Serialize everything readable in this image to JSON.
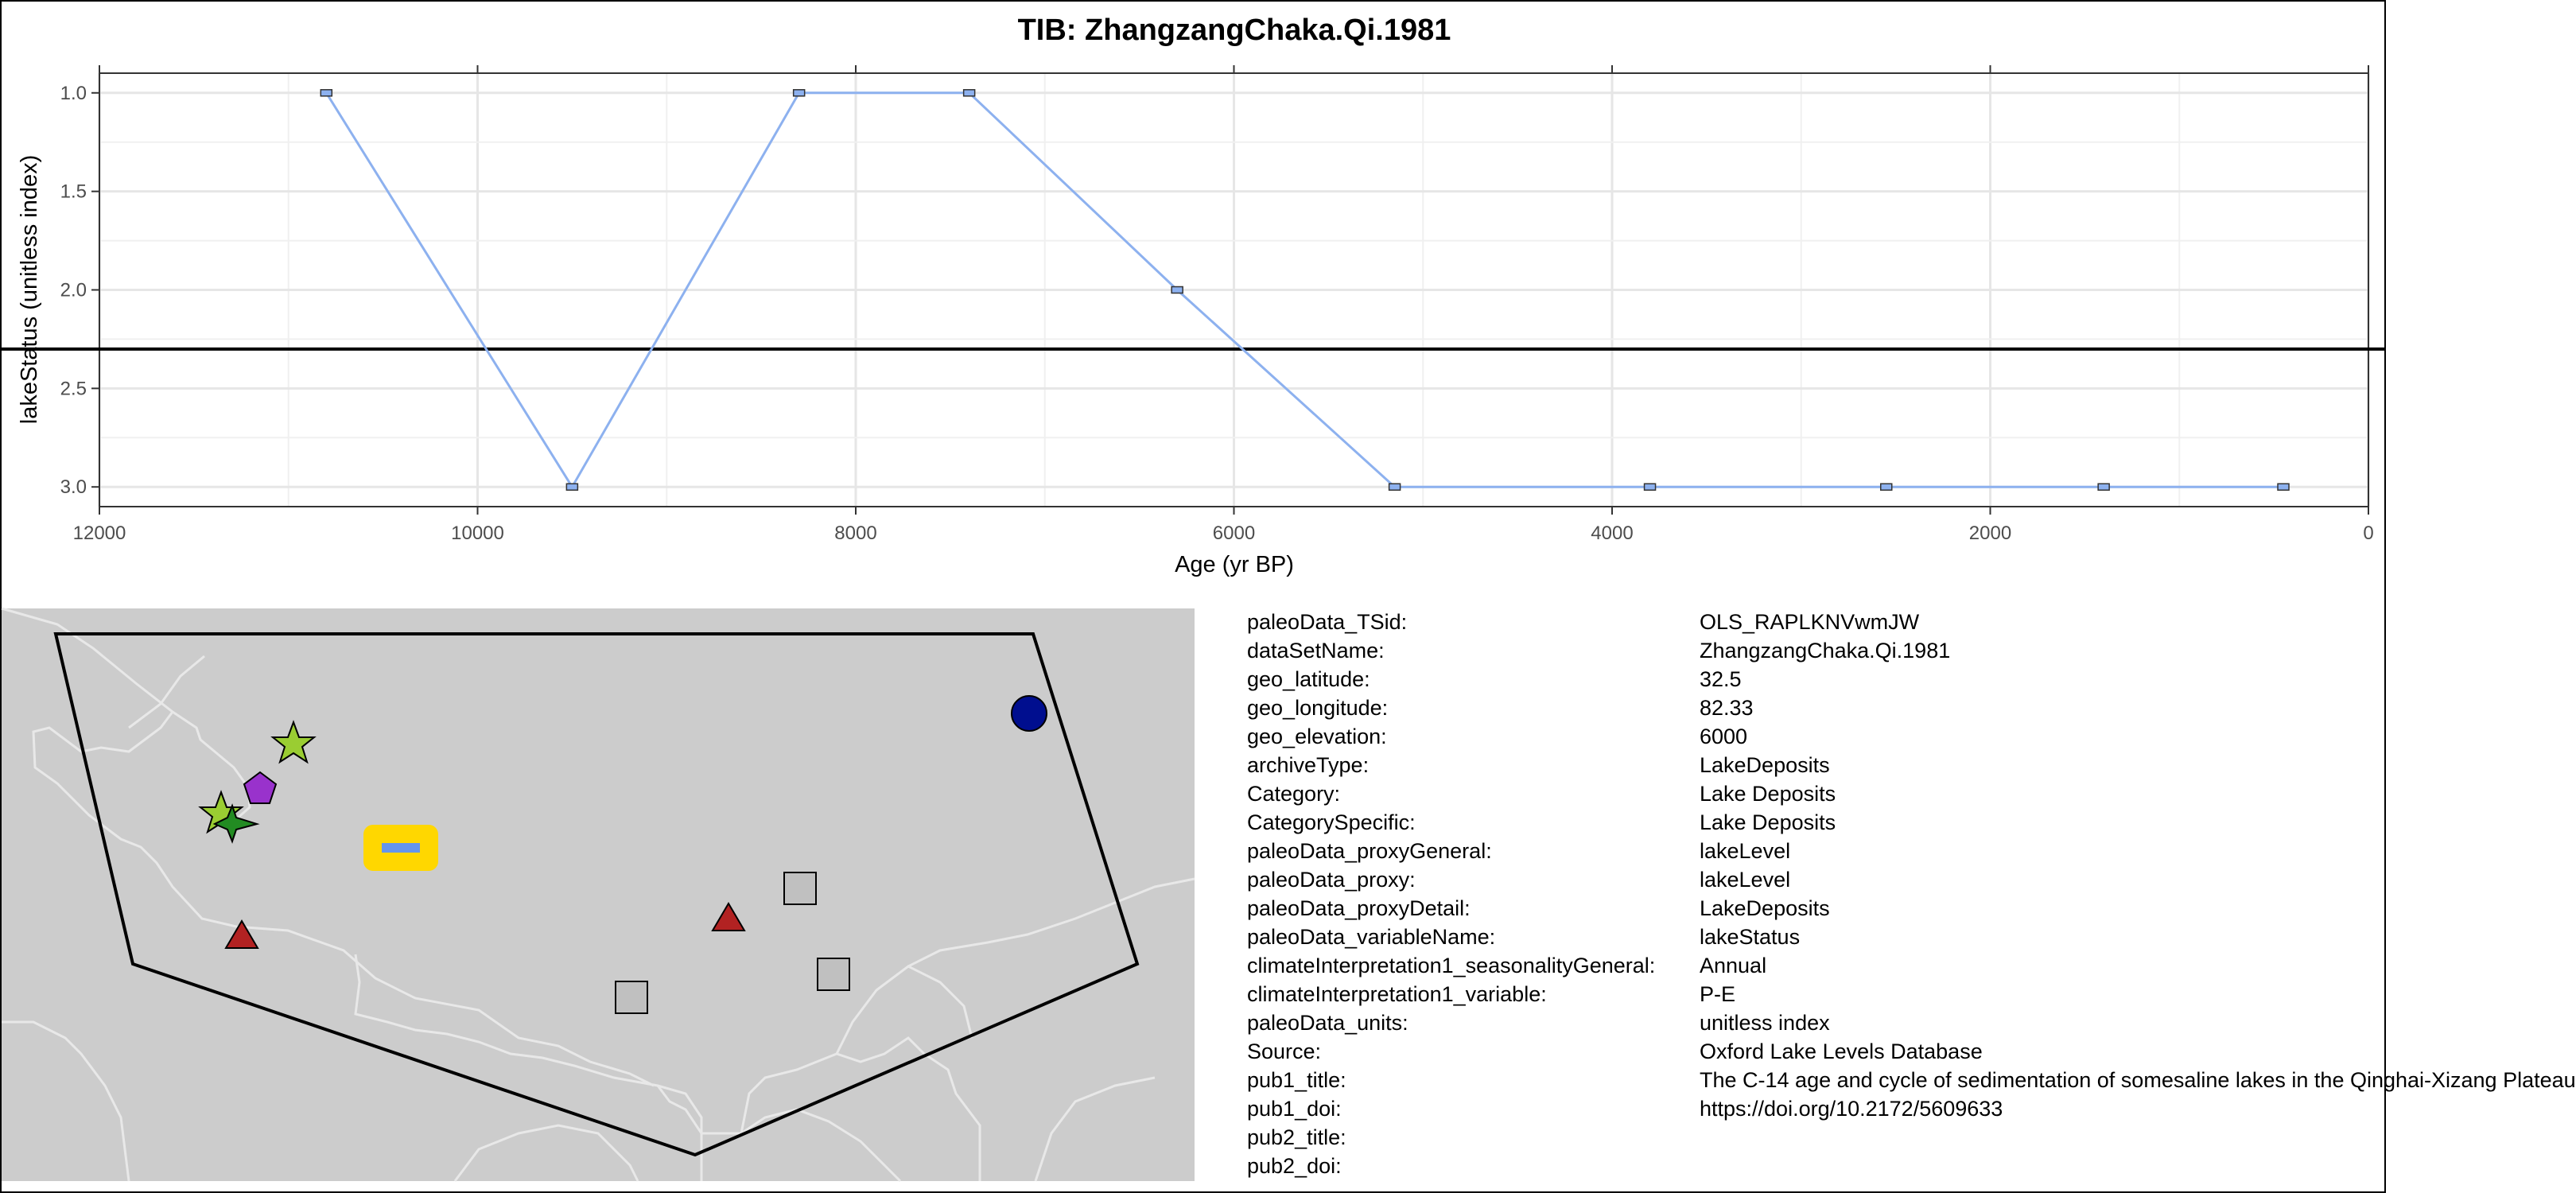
{
  "chart_data": {
    "type": "line",
    "title": "TIB: ZhangzangChaka.Qi.1981",
    "xlabel": "Age (yr BP)",
    "ylabel": "lakeStatus (unitless index)",
    "x_axis_reversed": true,
    "y_axis_reversed": true,
    "xlim": [
      12000,
      0
    ],
    "ylim": [
      0.9,
      3.1
    ],
    "x_ticks": [
      "12000",
      "10000",
      "8000",
      "6000",
      "4000",
      "2000",
      "0"
    ],
    "y_ticks": [
      "1.0",
      "1.5",
      "2.0",
      "2.5",
      "3.0"
    ],
    "grid": true,
    "reference_line_y": 2.3,
    "series": [
      {
        "x": [
          10800,
          9500,
          8300,
          7400,
          6300,
          5150,
          3800,
          2550,
          1400,
          450
        ],
        "y": [
          1,
          3,
          1,
          1,
          2,
          3,
          3,
          3,
          3,
          3
        ],
        "color": "#8db1ef"
      }
    ]
  },
  "map": {
    "background_color": "#cccccc",
    "polygon_color": "#000000",
    "sites": [
      {
        "marker": "circle",
        "color": "#000e8f"
      },
      {
        "marker": "star",
        "color": "#9acd32"
      },
      {
        "marker": "pentagon",
        "color": "#9932cc"
      },
      {
        "marker": "star",
        "color": "#9acd32"
      },
      {
        "marker": "star",
        "color": "#228b22"
      },
      {
        "marker": "triangle",
        "color": "#b22222"
      },
      {
        "marker": "triangle",
        "color": "#b22222"
      },
      {
        "marker": "square",
        "color": "#c0c0c0"
      },
      {
        "marker": "square",
        "color": "#c0c0c0"
      },
      {
        "marker": "square",
        "color": "#c0c0c0"
      },
      {
        "marker": "highlight-rect",
        "color": "#ffd700",
        "inner_color": "#6495ed"
      }
    ]
  },
  "metadata": [
    {
      "key": "paleoData_TSid:",
      "value": "OLS_RAPLKNVwmJW"
    },
    {
      "key": "dataSetName:",
      "value": "ZhangzangChaka.Qi.1981"
    },
    {
      "key": "geo_latitude:",
      "value": "32.5"
    },
    {
      "key": "geo_longitude:",
      "value": "82.33"
    },
    {
      "key": "geo_elevation:",
      "value": "6000"
    },
    {
      "key": "archiveType:",
      "value": "LakeDeposits"
    },
    {
      "key": "Category:",
      "value": "Lake Deposits"
    },
    {
      "key": "CategorySpecific:",
      "value": "Lake Deposits"
    },
    {
      "key": "paleoData_proxyGeneral:",
      "value": "lakeLevel"
    },
    {
      "key": "paleoData_proxy:",
      "value": "lakeLevel"
    },
    {
      "key": "paleoData_proxyDetail:",
      "value": "LakeDeposits"
    },
    {
      "key": "paleoData_variableName:",
      "value": "lakeStatus"
    },
    {
      "key": "climateInterpretation1_seasonalityGeneral:",
      "value": "Annual"
    },
    {
      "key": "climateInterpretation1_variable:",
      "value": "P-E"
    },
    {
      "key": "paleoData_units:",
      "value": "unitless index"
    },
    {
      "key": "Source:",
      "value": "Oxford Lake Levels Database"
    },
    {
      "key": "pub1_title:",
      "value": "The C-14 age and cycle of sedimentation of somesaline lakes in the Qinghai-Xizang Plateau"
    },
    {
      "key": "pub1_doi:",
      "value": "https://doi.org/10.2172/5609633"
    },
    {
      "key": "pub2_title:",
      "value": ""
    },
    {
      "key": "pub2_doi:",
      "value": ""
    }
  ]
}
